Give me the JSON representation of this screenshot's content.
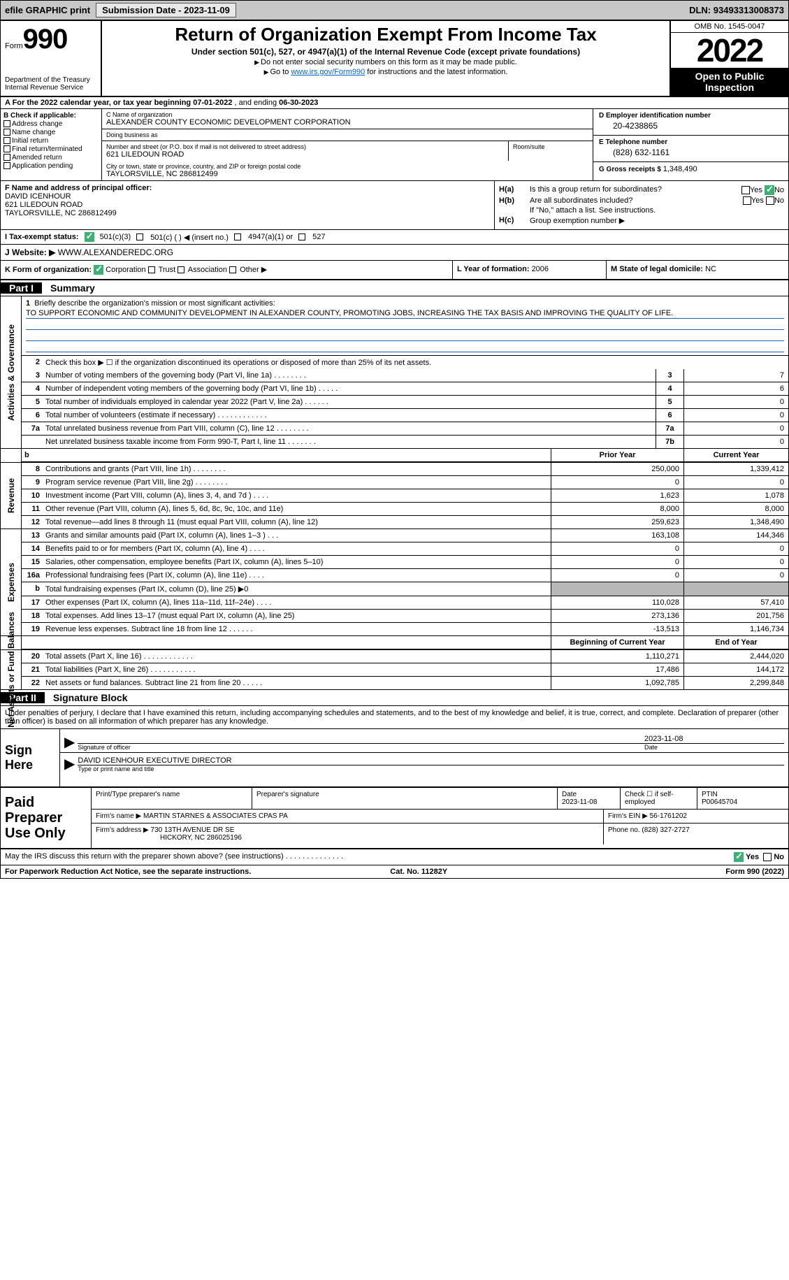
{
  "topbar": {
    "efile": "efile GRAPHIC print",
    "submission_label": "Submission Date - ",
    "submission_date": "2023-11-09",
    "dln_label": "DLN: ",
    "dln": "93493313008373"
  },
  "header": {
    "form_word": "Form",
    "form_num": "990",
    "dept": "Department of the Treasury\nInternal Revenue Service",
    "title": "Return of Organization Exempt From Income Tax",
    "subtitle": "Under section 501(c), 527, or 4947(a)(1) of the Internal Revenue Code (except private foundations)",
    "instr1": "Do not enter social security numbers on this form as it may be made public.",
    "instr2_pre": "Go to ",
    "instr2_link": "www.irs.gov/Form990",
    "instr2_post": " for instructions and the latest information.",
    "omb": "OMB No. 1545-0047",
    "year": "2022",
    "open": "Open to Public Inspection"
  },
  "rowA": {
    "prefix": "A   For the 2022 calendar year, or tax year beginning ",
    "begin": "07-01-2022",
    "mid": "  , and ending ",
    "end": "06-30-2023"
  },
  "colB": {
    "title": "B Check if applicable:",
    "addr_change": "Address change",
    "name_change": "Name change",
    "initial": "Initial return",
    "final": "Final return/terminated",
    "amended": "Amended return",
    "app_pending": "Application pending"
  },
  "colC": {
    "name_lbl": "C Name of organization",
    "name": "ALEXANDER COUNTY ECONOMIC DEVELOPMENT CORPORATION",
    "dba_lbl": "Doing business as",
    "dba": "",
    "street_lbl": "Number and street (or P.O. box if mail is not delivered to street address)",
    "street": "621 LILEDOUN ROAD",
    "room_lbl": "Room/suite",
    "city_lbl": "City or town, state or province, country, and ZIP or foreign postal code",
    "city": "TAYLORSVILLE, NC  286812499"
  },
  "colD": {
    "ein_lbl": "D Employer identification number",
    "ein": "20-4238865",
    "tel_lbl": "E Telephone number",
    "tel": "(828) 632-1161",
    "gross_lbl": "G Gross receipts $ ",
    "gross": "1,348,490"
  },
  "sectF": {
    "lbl": "F Name and address of principal officer:",
    "name": "DAVID ICENHOUR",
    "street": "621 LILEDOUN ROAD",
    "city": "TAYLORSVILLE, NC  286812499"
  },
  "sectH": {
    "ha_lbl": "H(a)",
    "ha_txt": "Is this a group return for subordinates?",
    "ha_yes": "Yes",
    "ha_no": "No",
    "ha_val": "No",
    "hb_lbl": "H(b)",
    "hb_txt": "Are all subordinates included?",
    "hb_note": "If \"No,\" attach a list. See instructions.",
    "hc_lbl": "H(c)",
    "hc_txt": "Group exemption number ▶"
  },
  "rowI": {
    "lbl": "I    Tax-exempt status:",
    "o1": "501(c)(3)",
    "o2": "501(c) (  ) ◀ (insert no.)",
    "o3": "4947(a)(1) or",
    "o4": "527"
  },
  "rowJ": {
    "lbl": "J    Website: ▶",
    "val": "  WWW.ALEXANDEREDC.ORG"
  },
  "rowK": {
    "lbl": "K Form of organization:",
    "corp": "Corporation",
    "trust": "Trust",
    "assoc": "Association",
    "other": "Other ▶"
  },
  "rowL": {
    "lbl": "L Year of formation: ",
    "val": "2006"
  },
  "rowM": {
    "lbl": "M State of legal domicile: ",
    "val": "NC"
  },
  "part1": {
    "num": "Part I",
    "title": "Summary"
  },
  "part2": {
    "num": "Part II",
    "title": "Signature Block"
  },
  "mission": {
    "num": "1",
    "prompt": "Briefly describe the organization's mission or most significant activities:",
    "text": "TO SUPPORT ECONOMIC AND COMMUNITY DEVELOPMENT IN ALEXANDER COUNTY, PROMOTING JOBS, INCREASING THE TAX BASIS AND IMPROVING THE QUALITY OF LIFE."
  },
  "line2": {
    "num": "2",
    "txt": "Check this box ▶ ☐  if the organization discontinued its operations or disposed of more than 25% of its net assets."
  },
  "gov_lines": [
    {
      "n": "3",
      "t": "Number of voting members of the governing body (Part VI, line 1a)   .    .    .    .    .    .    .    .",
      "b": "3",
      "v": "7"
    },
    {
      "n": "4",
      "t": "Number of independent voting members of the governing body (Part VI, line 1b)   .    .    .    .    .",
      "b": "4",
      "v": "6"
    },
    {
      "n": "5",
      "t": "Total number of individuals employed in calendar year 2022 (Part V, line 2a)   .    .    .    .    .    .",
      "b": "5",
      "v": "0"
    },
    {
      "n": "6",
      "t": "Total number of volunteers (estimate if necessary)    .    .    .    .    .    .    .    .    .    .    .    .",
      "b": "6",
      "v": "0"
    },
    {
      "n": "7a",
      "t": "Total unrelated business revenue from Part VIII, column (C), line 12   .    .    .    .    .    .    .    .",
      "b": "7a",
      "v": "0"
    },
    {
      "n": "",
      "t": "Net unrelated business taxable income from Form 990-T, Part I, line 11   .    .    .    .    .    .    .",
      "b": "7b",
      "v": "0"
    }
  ],
  "col_hdr": {
    "prior": "Prior Year",
    "curr": "Current Year"
  },
  "revenue": [
    {
      "n": "8",
      "t": "Contributions and grants (Part VIII, line 1h)    .    .    .    .    .    .    .    .",
      "p": "250,000",
      "c": "1,339,412"
    },
    {
      "n": "9",
      "t": "Program service revenue (Part VIII, line 2g)   .    .    .    .    .    .    .    .",
      "p": "0",
      "c": "0"
    },
    {
      "n": "10",
      "t": "Investment income (Part VIII, column (A), lines 3, 4, and 7d )   .    .    .    .",
      "p": "1,623",
      "c": "1,078"
    },
    {
      "n": "11",
      "t": "Other revenue (Part VIII, column (A), lines 5, 6d, 8c, 9c, 10c, and 11e)",
      "p": "8,000",
      "c": "8,000"
    },
    {
      "n": "12",
      "t": "Total revenue—add lines 8 through 11 (must equal Part VIII, column (A), line 12)",
      "p": "259,623",
      "c": "1,348,490"
    }
  ],
  "expenses": [
    {
      "n": "13",
      "t": "Grants and similar amounts paid (Part IX, column (A), lines 1–3 )   .    .    .",
      "p": "163,108",
      "c": "144,346"
    },
    {
      "n": "14",
      "t": "Benefits paid to or for members (Part IX, column (A), line 4)   .    .    .    .",
      "p": "0",
      "c": "0"
    },
    {
      "n": "15",
      "t": "Salaries, other compensation, employee benefits (Part IX, column (A), lines 5–10)",
      "p": "0",
      "c": "0"
    },
    {
      "n": "16a",
      "t": "Professional fundraising fees (Part IX, column (A), line 11e)   .    .    .    .",
      "p": "0",
      "c": "0"
    },
    {
      "n": "b",
      "t": "Total fundraising expenses (Part IX, column (D), line 25) ▶0",
      "p": "",
      "c": "",
      "shade": true
    },
    {
      "n": "17",
      "t": "Other expenses (Part IX, column (A), lines 11a–11d, 11f–24e)   .    .    .    .",
      "p": "110,028",
      "c": "57,410"
    },
    {
      "n": "18",
      "t": "Total expenses. Add lines 13–17 (must equal Part IX, column (A), line 25)",
      "p": "273,136",
      "c": "201,756"
    },
    {
      "n": "19",
      "t": "Revenue less expenses. Subtract line 18 from line 12   .    .    .    .    .    .",
      "p": "-13,513",
      "c": "1,146,734"
    }
  ],
  "net_hdr": {
    "beg": "Beginning of Current Year",
    "end": "End of Year"
  },
  "netassets": [
    {
      "n": "20",
      "t": "Total assets (Part X, line 16)   .    .    .    .    .    .    .    .    .    .    .    .",
      "p": "1,110,271",
      "c": "2,444,020"
    },
    {
      "n": "21",
      "t": "Total liabilities (Part X, line 26)   .    .    .    .    .    .    .    .    .    .    .",
      "p": "17,486",
      "c": "144,172"
    },
    {
      "n": "22",
      "t": "Net assets or fund balances. Subtract line 21 from line 20   .    .    .    .    .",
      "p": "1,092,785",
      "c": "2,299,848"
    }
  ],
  "sig": {
    "penalties": "Under penalties of perjury, I declare that I have examined this return, including accompanying schedules and statements, and to the best of my knowledge and belief, it is true, correct, and complete. Declaration of preparer (other than officer) is based on all information of which preparer has any knowledge.",
    "sign_here": "Sign Here",
    "sig_officer_lbl": "Signature of officer",
    "sig_date": "2023-11-08",
    "date_lbl": "Date",
    "officer_name": "DAVID ICENHOUR  EXECUTIVE DIRECTOR",
    "name_lbl": "Type or print name and title"
  },
  "prep": {
    "title": "Paid Preparer Use Only",
    "print_lbl": "Print/Type preparer's name",
    "sig_lbl": "Preparer's signature",
    "date_lbl": "Date",
    "date": "2023-11-08",
    "self_lbl": "Check ☐ if self-employed",
    "ptin_lbl": "PTIN",
    "ptin": "P00645704",
    "firm_name_lbl": "Firm's name    ▶ ",
    "firm_name": "MARTIN STARNES & ASSOCIATES CPAS PA",
    "firm_ein_lbl": "Firm's EIN ▶ ",
    "firm_ein": "56-1761202",
    "firm_addr_lbl": "Firm's address ▶ ",
    "firm_addr1": "730 13TH AVENUE DR SE",
    "firm_addr2": "HICKORY, NC  286025196",
    "phone_lbl": "Phone no. ",
    "phone": "(828) 327-2727"
  },
  "discuss": {
    "txt": "May the IRS discuss this return with the preparer shown above? (see instructions)    .    .    .    .    .    .    .    .    .    .    .    .    .    .",
    "yes": "Yes",
    "no": "No"
  },
  "footer": {
    "pra": "For Paperwork Reduction Act Notice, see the separate instructions.",
    "cat": "Cat. No. 11282Y",
    "form": "Form 990 (2022)"
  },
  "vlabels": {
    "gov": "Activities & Governance",
    "rev": "Revenue",
    "exp": "Expenses",
    "net": "Net Assets or Fund Balances"
  }
}
